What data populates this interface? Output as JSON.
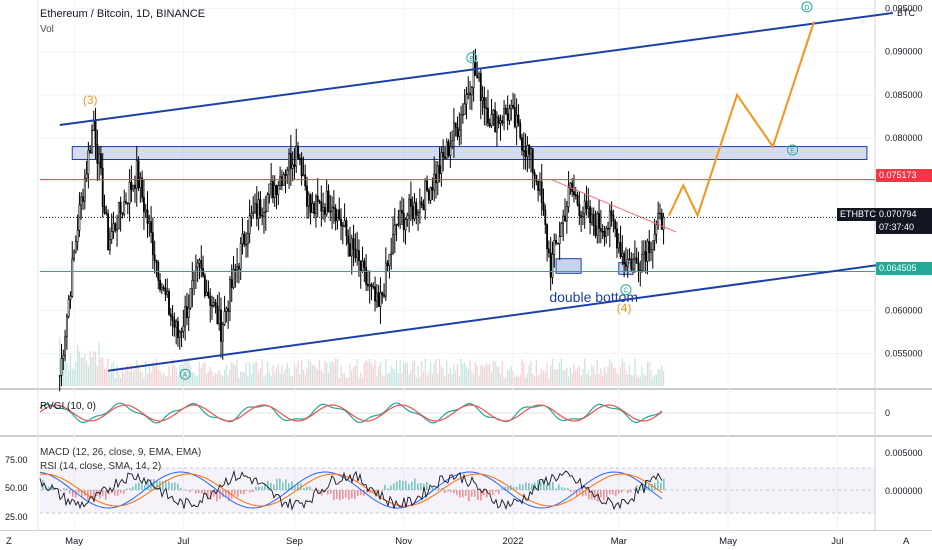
{
  "header": {
    "title": "Ethereum / Bitcoin, 1D, BINANCE",
    "volume_label": "Vol"
  },
  "right_axis": {
    "currency": "BTC",
    "ticks": [
      "0.095000",
      "0.090000",
      "0.085000",
      "0.080000",
      "0.060000",
      "0.055000"
    ]
  },
  "price_tags": {
    "resistance": "0.075173",
    "symbol": "ETHBTC",
    "last": "0.070794",
    "countdown": "07:37:40",
    "support": "0.064505"
  },
  "rvgi": {
    "label": "RVGI (10, 0)",
    "zero_tick": "0"
  },
  "macd": {
    "label": "MACD (12, 26, close, 9, EMA, EMA)",
    "ticks": [
      "0.005000",
      "0.000000"
    ]
  },
  "rsi": {
    "label": "RSI (14, close, SMA, 14, 2)",
    "ticks": [
      "75.00",
      "50.00",
      "25.00"
    ]
  },
  "wave_labels": {
    "w3": "(3)",
    "B": "B",
    "D": "D",
    "E": "E",
    "A": "A",
    "C": "C",
    "w4": "(4)"
  },
  "annotation": "double bottom",
  "time_axis": {
    "labels": [
      "May",
      "Jul",
      "Sep",
      "Nov",
      "2022",
      "Mar",
      "May",
      "Jul"
    ]
  },
  "bottom_buttons": {
    "left": "Z",
    "right": "A"
  },
  "colors": {
    "candles": "#000000",
    "channel": "#1e3fa8",
    "box_fill": "#b2bfe6",
    "resistance": "#f23645",
    "support": "#22ab94",
    "projection": "#f7931a",
    "wave_marker": "#26a69a"
  },
  "chart_data": {
    "type": "candlestick",
    "symbol": "ETHBTC",
    "exchange": "BINANCE",
    "interval": "1D",
    "x_axis_labels": [
      "May",
      "Jul",
      "Sep",
      "Nov",
      "2022",
      "Mar",
      "May",
      "Jul"
    ],
    "y_axis_ticks": [
      0.095,
      0.09,
      0.085,
      0.08,
      0.06,
      0.055
    ],
    "ylim": [
      0.051,
      0.096
    ],
    "price_path": [
      [
        "2021-04-23",
        0.0525
      ],
      [
        "2021-05-03",
        0.07
      ],
      [
        "2021-05-12",
        0.082
      ],
      [
        "2021-05-20",
        0.068
      ],
      [
        "2021-06-05",
        0.076
      ],
      [
        "2021-06-20",
        0.062
      ],
      [
        "2021-06-28",
        0.057
      ],
      [
        "2021-07-10",
        0.065
      ],
      [
        "2021-07-22",
        0.058
      ],
      [
        "2021-08-06",
        0.07
      ],
      [
        "2021-08-21",
        0.0745
      ],
      [
        "2021-09-03",
        0.079
      ],
      [
        "2021-09-10",
        0.0715
      ],
      [
        "2021-09-22",
        0.073
      ],
      [
        "2021-10-01",
        0.068
      ],
      [
        "2021-10-18",
        0.06
      ],
      [
        "2021-10-28",
        0.07
      ],
      [
        "2021-11-10",
        0.0725
      ],
      [
        "2021-11-20",
        0.076
      ],
      [
        "2021-12-02",
        0.082
      ],
      [
        "2021-12-10",
        0.088
      ],
      [
        "2021-12-20",
        0.082
      ],
      [
        "2021-12-30",
        0.083
      ],
      [
        "2022-01-08",
        0.079
      ],
      [
        "2022-01-15",
        0.075
      ],
      [
        "2022-01-22",
        0.065
      ],
      [
        "2022-02-02",
        0.074
      ],
      [
        "2022-02-14",
        0.07
      ],
      [
        "2022-02-26",
        0.07
      ],
      [
        "2022-03-04",
        0.066
      ],
      [
        "2022-03-11",
        0.0655
      ],
      [
        "2022-03-18",
        0.068
      ],
      [
        "2022-03-26",
        0.0708
      ]
    ],
    "horizontal_levels": [
      {
        "label": "0.075173",
        "value": 0.075173
      },
      {
        "label": "0.070794",
        "value": 0.070794
      },
      {
        "label": "0.064505",
        "value": 0.064505
      }
    ],
    "resistance_zone": [
      0.0775,
      0.079
    ],
    "double_bottom_zone": [
      0.0643,
      0.066
    ],
    "upper_channel": [
      [
        "2021-04-23",
        0.0815
      ],
      [
        "2022-08-01",
        0.0945
      ]
    ],
    "lower_channel": [
      [
        "2021-05-20",
        0.053
      ],
      [
        "2022-08-01",
        0.0655
      ]
    ],
    "projection": [
      [
        "2022-03-29",
        0.071
      ],
      [
        "2022-04-06",
        0.0745
      ],
      [
        "2022-04-14",
        0.071
      ],
      [
        "2022-05-06",
        0.085
      ],
      [
        "2022-05-26",
        0.079
      ],
      [
        "2022-06-18",
        0.0935
      ]
    ],
    "grid": true
  }
}
